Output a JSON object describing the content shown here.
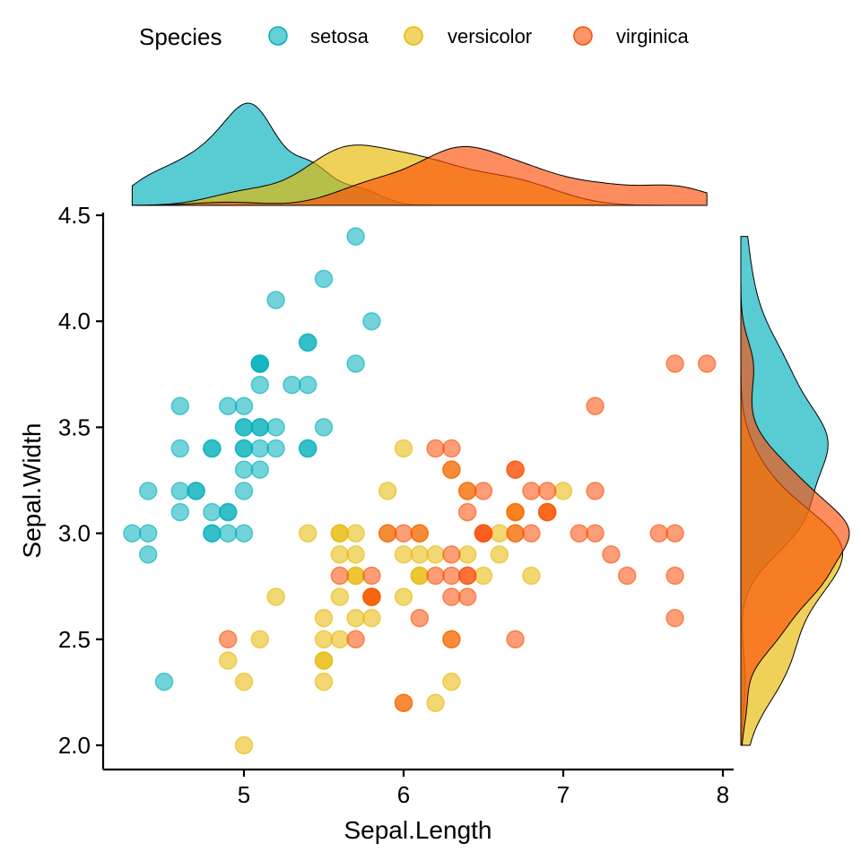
{
  "chart_data": {
    "type": "scatter",
    "xlabel": "Sepal.Length",
    "ylabel": "Sepal.Width",
    "xlim": [
      4.12,
      8.08
    ],
    "ylim": [
      1.88,
      4.52
    ],
    "xticks": [
      5,
      6,
      7,
      8
    ],
    "yticks": [
      "2.0",
      "2.5",
      "3.0",
      "3.5",
      "4.0",
      "4.5"
    ],
    "grid": false,
    "legend": {
      "title": "Species",
      "placement": "top"
    },
    "marginals": "density",
    "series": [
      {
        "name": "setosa",
        "color": "#00AFBB",
        "x": [
          5.1,
          4.9,
          4.7,
          4.6,
          5.0,
          5.4,
          4.6,
          5.0,
          4.4,
          4.9,
          5.4,
          4.8,
          4.8,
          4.3,
          5.8,
          5.7,
          5.4,
          5.1,
          5.7,
          5.1,
          5.4,
          5.1,
          4.6,
          5.1,
          4.8,
          5.0,
          5.0,
          5.2,
          5.2,
          4.7,
          4.8,
          5.4,
          5.2,
          5.5,
          4.9,
          5.0,
          5.5,
          4.9,
          4.4,
          5.1,
          5.0,
          4.5,
          4.4,
          5.0,
          5.1,
          4.8,
          5.1,
          4.6,
          5.3,
          5.0
        ],
        "y": [
          3.5,
          3.0,
          3.2,
          3.1,
          3.6,
          3.9,
          3.4,
          3.4,
          2.9,
          3.1,
          3.7,
          3.4,
          3.0,
          3.0,
          4.0,
          4.4,
          3.9,
          3.5,
          3.8,
          3.8,
          3.4,
          3.7,
          3.6,
          3.3,
          3.4,
          3.0,
          3.4,
          3.5,
          3.4,
          3.2,
          3.1,
          3.4,
          4.1,
          4.2,
          3.1,
          3.2,
          3.5,
          3.6,
          3.0,
          3.4,
          3.5,
          2.3,
          3.2,
          3.5,
          3.8,
          3.0,
          3.8,
          3.2,
          3.7,
          3.3
        ]
      },
      {
        "name": "versicolor",
        "color": "#E7B800",
        "x": [
          7.0,
          6.4,
          6.9,
          5.5,
          6.5,
          5.7,
          6.3,
          4.9,
          6.6,
          5.2,
          5.0,
          5.9,
          6.0,
          6.1,
          5.6,
          6.7,
          5.6,
          5.8,
          6.2,
          5.6,
          5.9,
          6.1,
          6.3,
          6.1,
          6.4,
          6.6,
          6.8,
          6.7,
          6.0,
          5.7,
          5.5,
          5.5,
          5.8,
          6.0,
          5.4,
          6.0,
          6.7,
          6.3,
          5.6,
          5.5,
          5.5,
          6.1,
          5.8,
          5.0,
          5.6,
          5.7,
          5.7,
          6.2,
          5.1,
          5.7
        ],
        "y": [
          3.2,
          3.2,
          3.1,
          2.3,
          2.8,
          2.8,
          3.3,
          2.4,
          2.9,
          2.7,
          2.0,
          3.0,
          2.2,
          2.9,
          2.9,
          3.1,
          3.0,
          2.7,
          2.2,
          2.5,
          3.2,
          2.8,
          2.5,
          2.8,
          2.9,
          3.0,
          2.8,
          3.0,
          2.9,
          2.6,
          2.4,
          2.4,
          2.7,
          2.7,
          3.0,
          3.4,
          3.1,
          2.3,
          3.0,
          2.5,
          2.6,
          3.0,
          2.6,
          2.3,
          2.7,
          3.0,
          2.9,
          2.9,
          2.5,
          2.8
        ]
      },
      {
        "name": "virginica",
        "color": "#FC4E07",
        "x": [
          6.3,
          5.8,
          7.1,
          6.3,
          6.5,
          7.6,
          4.9,
          7.3,
          6.7,
          7.2,
          6.5,
          6.4,
          6.8,
          5.7,
          5.8,
          6.4,
          6.5,
          7.7,
          7.7,
          6.0,
          6.9,
          5.6,
          7.7,
          6.3,
          6.7,
          7.2,
          6.2,
          6.1,
          6.4,
          7.2,
          7.4,
          7.9,
          6.4,
          6.3,
          6.1,
          7.7,
          6.3,
          6.4,
          6.0,
          6.9,
          6.7,
          6.9,
          5.8,
          6.8,
          6.7,
          6.7,
          6.3,
          6.5,
          6.2,
          5.9
        ],
        "y": [
          3.3,
          2.7,
          3.0,
          2.9,
          3.0,
          3.0,
          2.5,
          2.9,
          2.5,
          3.6,
          3.2,
          2.7,
          3.0,
          2.5,
          2.8,
          3.2,
          3.0,
          3.8,
          2.6,
          2.2,
          3.2,
          2.8,
          2.8,
          2.7,
          3.3,
          3.2,
          2.8,
          3.0,
          2.8,
          3.0,
          2.8,
          3.8,
          2.8,
          2.8,
          2.6,
          3.0,
          3.4,
          3.1,
          3.0,
          3.1,
          3.1,
          3.1,
          2.7,
          3.2,
          3.3,
          3.0,
          2.5,
          3.0,
          3.4,
          3.0
        ]
      }
    ]
  }
}
